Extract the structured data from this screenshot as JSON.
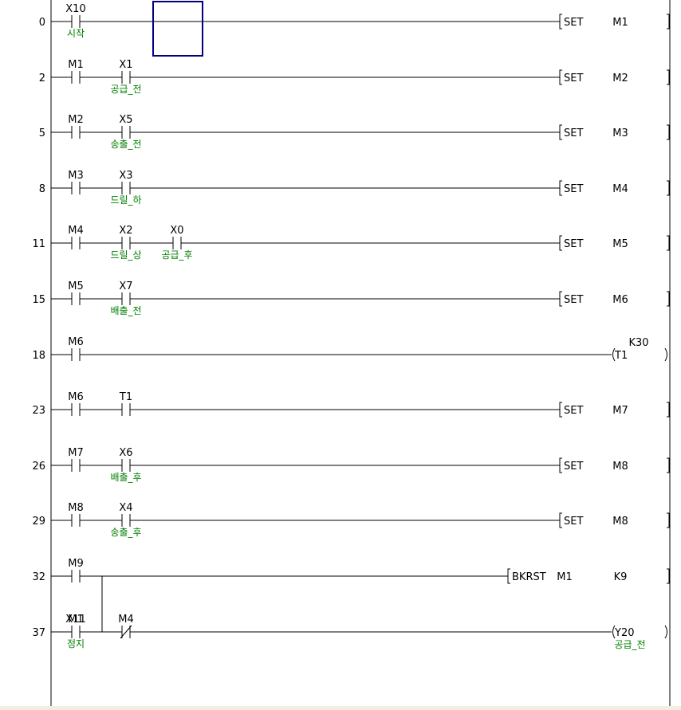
{
  "cursor_box": {
    "color": "#000080"
  },
  "rungs": [
    {
      "step": "0",
      "contacts": [
        {
          "type": "NO",
          "device": "X10",
          "comment": "시작"
        }
      ],
      "instruction": {
        "kind": "bracket",
        "op": "SET",
        "operands": [
          "M1"
        ]
      }
    },
    {
      "step": "2",
      "contacts": [
        {
          "type": "NO",
          "device": "M1",
          "comment": ""
        },
        {
          "type": "NO",
          "device": "X1",
          "comment": "공급_전"
        }
      ],
      "instruction": {
        "kind": "bracket",
        "op": "SET",
        "operands": [
          "M2"
        ]
      }
    },
    {
      "step": "5",
      "contacts": [
        {
          "type": "NO",
          "device": "M2",
          "comment": ""
        },
        {
          "type": "NO",
          "device": "X5",
          "comment": "송출_전"
        }
      ],
      "instruction": {
        "kind": "bracket",
        "op": "SET",
        "operands": [
          "M3"
        ]
      }
    },
    {
      "step": "8",
      "contacts": [
        {
          "type": "NO",
          "device": "M3",
          "comment": ""
        },
        {
          "type": "NO",
          "device": "X3",
          "comment": "드릴_하"
        }
      ],
      "instruction": {
        "kind": "bracket",
        "op": "SET",
        "operands": [
          "M4"
        ]
      }
    },
    {
      "step": "11",
      "contacts": [
        {
          "type": "NO",
          "device": "M4",
          "comment": ""
        },
        {
          "type": "NO",
          "device": "X2",
          "comment": "드릴_상"
        },
        {
          "type": "NO",
          "device": "X0",
          "comment": "공급_후"
        }
      ],
      "instruction": {
        "kind": "bracket",
        "op": "SET",
        "operands": [
          "M5"
        ]
      }
    },
    {
      "step": "15",
      "contacts": [
        {
          "type": "NO",
          "device": "M5",
          "comment": ""
        },
        {
          "type": "NO",
          "device": "X7",
          "comment": "배출_전"
        }
      ],
      "instruction": {
        "kind": "bracket",
        "op": "SET",
        "operands": [
          "M6"
        ]
      }
    },
    {
      "step": "18",
      "contacts": [
        {
          "type": "NO",
          "device": "M6",
          "comment": ""
        }
      ],
      "instruction": {
        "kind": "coil",
        "device": "T1",
        "setting": "K30",
        "comment": ""
      }
    },
    {
      "step": "23",
      "contacts": [
        {
          "type": "NO",
          "device": "M6",
          "comment": ""
        },
        {
          "type": "NO",
          "device": "T1",
          "comment": ""
        }
      ],
      "instruction": {
        "kind": "bracket",
        "op": "SET",
        "operands": [
          "M7"
        ]
      }
    },
    {
      "step": "26",
      "contacts": [
        {
          "type": "NO",
          "device": "M7",
          "comment": ""
        },
        {
          "type": "NO",
          "device": "X6",
          "comment": "배출_후"
        }
      ],
      "instruction": {
        "kind": "bracket",
        "op": "SET",
        "operands": [
          "M8"
        ]
      }
    },
    {
      "step": "29",
      "contacts": [
        {
          "type": "NO",
          "device": "M8",
          "comment": ""
        },
        {
          "type": "NO",
          "device": "X4",
          "comment": "송출_후"
        }
      ],
      "instruction": {
        "kind": "bracket",
        "op": "SET",
        "operands": [
          "M8"
        ]
      }
    },
    {
      "step": "32",
      "contacts": [
        {
          "type": "NO",
          "device": "M9",
          "comment": ""
        }
      ],
      "parallel": {
        "type": "NO",
        "device": "X11",
        "comment": "정지"
      },
      "instruction": {
        "kind": "bracket",
        "op": "BKRST",
        "operands": [
          "M1",
          "K9"
        ]
      }
    },
    {
      "step": "37",
      "contacts": [
        {
          "type": "NO",
          "device": "M1",
          "comment": ""
        },
        {
          "type": "NC",
          "device": "M4",
          "comment": ""
        }
      ],
      "instruction": {
        "kind": "coil",
        "device": "Y20",
        "setting": "",
        "comment": "공급_전"
      }
    }
  ]
}
